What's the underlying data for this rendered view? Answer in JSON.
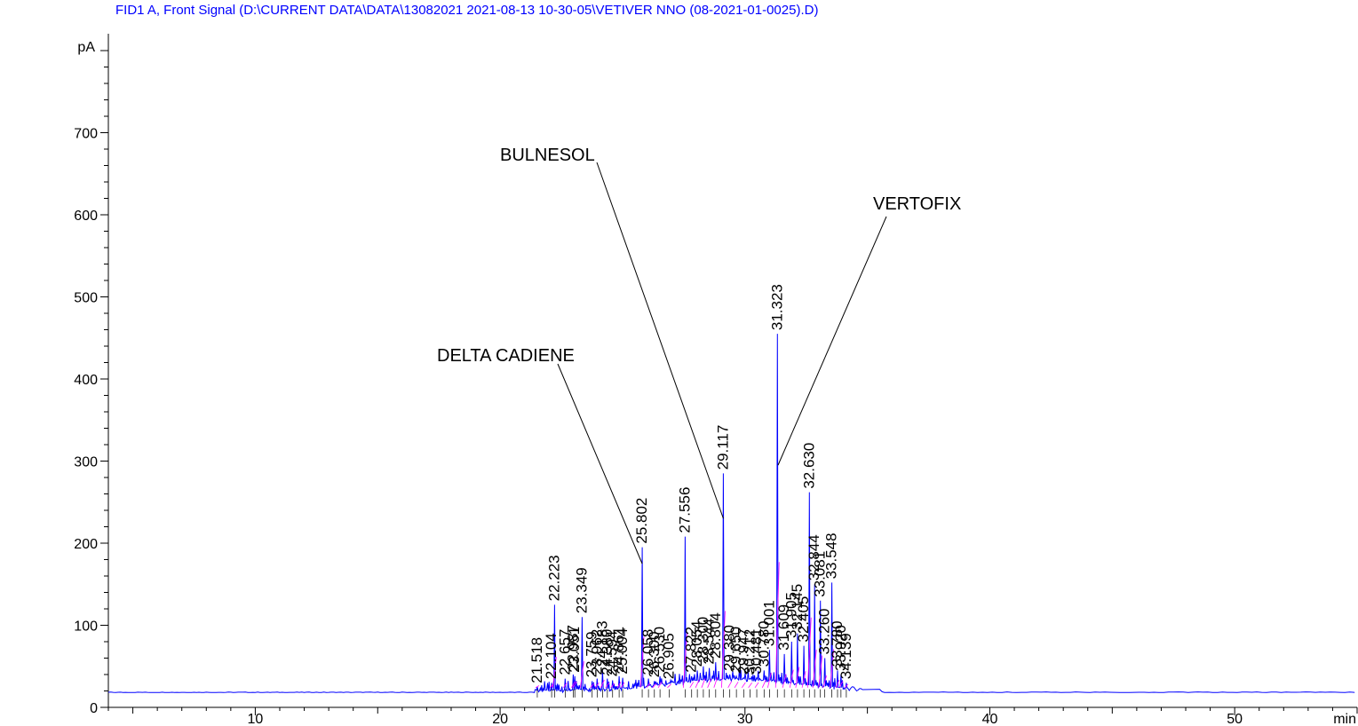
{
  "title": "FID1 A, Front Signal (D:\\CURRENT DATA\\DATA\\13082021 2021-08-13 10-30-05\\VETIVER NNO (08-2021-01-0025).D)",
  "chart_data": {
    "type": "line",
    "ylabel": "pA",
    "xlabel": "min",
    "xlim": [
      4,
      55
    ],
    "ylim": [
      0,
      820
    ],
    "x_ticks": [
      10,
      20,
      30,
      40,
      50
    ],
    "y_ticks": [
      0,
      100,
      200,
      300,
      400,
      500,
      600,
      700
    ],
    "baseline": 18,
    "colors": {
      "signal": "#0000ff",
      "integration": "#ff00ff",
      "axis": "#000000",
      "title": "#0000ff"
    },
    "peaks": [
      {
        "rt": "21.518",
        "x": 21.518,
        "h": 25
      },
      {
        "rt": "22.104",
        "x": 22.104,
        "h": 30
      },
      {
        "rt": "22.223",
        "x": 22.223,
        "h": 125
      },
      {
        "rt": "22.657",
        "x": 22.657,
        "h": 35
      },
      {
        "rt": "22.987",
        "x": 22.987,
        "h": 40
      },
      {
        "rt": "23.051",
        "x": 23.051,
        "h": 38
      },
      {
        "rt": "23.349",
        "x": 23.349,
        "h": 110
      },
      {
        "rt": "23.759",
        "x": 23.759,
        "h": 32
      },
      {
        "rt": "23.962",
        "x": 23.962,
        "h": 35
      },
      {
        "rt": "24.183",
        "x": 24.183,
        "h": 45
      },
      {
        "rt": "24.380",
        "x": 24.38,
        "h": 35
      },
      {
        "rt": "24.594",
        "x": 24.594,
        "h": 33
      },
      {
        "rt": "24.861",
        "x": 24.861,
        "h": 38
      },
      {
        "rt": "25.004",
        "x": 25.004,
        "h": 36
      },
      {
        "rt": "25.802",
        "x": 25.802,
        "h": 195
      },
      {
        "rt": "26.058",
        "x": 26.058,
        "h": 35
      },
      {
        "rt": "26.300",
        "x": 26.3,
        "h": 32
      },
      {
        "rt": "26.530",
        "x": 26.53,
        "h": 38
      },
      {
        "rt": "26.905",
        "x": 26.905,
        "h": 30
      },
      {
        "rt": "27.556",
        "x": 27.556,
        "h": 208
      },
      {
        "rt": "27.822",
        "x": 27.822,
        "h": 38
      },
      {
        "rt": "28.054",
        "x": 28.054,
        "h": 45
      },
      {
        "rt": "28.300",
        "x": 28.3,
        "h": 50
      },
      {
        "rt": "28.544",
        "x": 28.544,
        "h": 48
      },
      {
        "rt": "28.804",
        "x": 28.804,
        "h": 55
      },
      {
        "rt": "29.117",
        "x": 29.117,
        "h": 285
      },
      {
        "rt": "29.380",
        "x": 29.38,
        "h": 40
      },
      {
        "rt": "29.650",
        "x": 29.65,
        "h": 38
      },
      {
        "rt": "29.947",
        "x": 29.947,
        "h": 36
      },
      {
        "rt": "30.212",
        "x": 30.212,
        "h": 35
      },
      {
        "rt": "30.481",
        "x": 30.481,
        "h": 36
      },
      {
        "rt": "30.780",
        "x": 30.78,
        "h": 45
      },
      {
        "rt": "31.001",
        "x": 31.001,
        "h": 70
      },
      {
        "rt": "31.323",
        "x": 31.323,
        "h": 455
      },
      {
        "rt": "31.609",
        "x": 31.609,
        "h": 65
      },
      {
        "rt": "31.905",
        "x": 31.905,
        "h": 80
      },
      {
        "rt": "32.145",
        "x": 32.145,
        "h": 90
      },
      {
        "rt": "32.405",
        "x": 32.405,
        "h": 75
      },
      {
        "rt": "32.630",
        "x": 32.63,
        "h": 262
      },
      {
        "rt": "32.844",
        "x": 32.844,
        "h": 150
      },
      {
        "rt": "33.081",
        "x": 33.081,
        "h": 130
      },
      {
        "rt": "33.260",
        "x": 33.26,
        "h": 60
      },
      {
        "rt": "33.548",
        "x": 33.548,
        "h": 152
      },
      {
        "rt": "33.780",
        "x": 33.78,
        "h": 45
      },
      {
        "rt": "33.920",
        "x": 33.92,
        "h": 40
      },
      {
        "rt": "34.139",
        "x": 34.139,
        "h": 30
      }
    ],
    "annotations": [
      {
        "text": "DELTA CADIENE",
        "peak_x": 25.802,
        "peak_y": 175
      },
      {
        "text": "BULNESOL",
        "peak_x": 29.117,
        "peak_y": 230
      },
      {
        "text": "VERTOFIX",
        "peak_x": 31.35,
        "peak_y": 295
      }
    ]
  }
}
